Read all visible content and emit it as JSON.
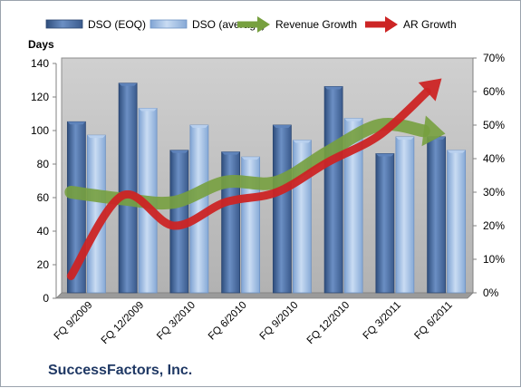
{
  "chart_data": {
    "type": "bar",
    "categories": [
      "FQ 9/2009",
      "FQ 12/2009",
      "FQ 3/2010",
      "FQ 6/2010",
      "FQ 9/2010",
      "FQ 12/2010",
      "FQ 3/2011",
      "FQ 6/2011"
    ],
    "series": [
      {
        "name": "DSO (EOQ)",
        "type": "bar",
        "axis": "left",
        "values": [
          102,
          125,
          85,
          84,
          100,
          123,
          83,
          93
        ]
      },
      {
        "name": "DSO (average)",
        "type": "bar",
        "axis": "left",
        "values": [
          94,
          110,
          100,
          81,
          91,
          104,
          93,
          85
        ]
      },
      {
        "name": "Revenue Growth",
        "type": "arrow-line",
        "axis": "right",
        "values": [
          0.3,
          0.28,
          0.27,
          0.33,
          0.33,
          0.42,
          0.5,
          0.48
        ]
      },
      {
        "name": "AR Growth",
        "type": "arrow-line",
        "axis": "right",
        "values": [
          0.05,
          0.29,
          0.2,
          0.27,
          0.3,
          0.39,
          0.47,
          0.61
        ]
      }
    ],
    "ylabel": "Days",
    "ylim": [
      0,
      140
    ],
    "yticks": [
      "0",
      "20",
      "40",
      "60",
      "80",
      "100",
      "120",
      "140"
    ],
    "y2lim": [
      0,
      0.7
    ],
    "y2ticks": [
      "0%",
      "10%",
      "20%",
      "30%",
      "40%",
      "50%",
      "60%",
      "70%"
    ],
    "legend_position": "top",
    "grid": false
  },
  "company": "SuccessFactors, Inc.",
  "colors": {
    "dso_eoq": "#4a6fa5",
    "dso_avg": "#9dbde6",
    "revenue_growth": "#77a03f",
    "ar_growth": "#cc2424",
    "plot_bg": "#bfbfbf"
  }
}
